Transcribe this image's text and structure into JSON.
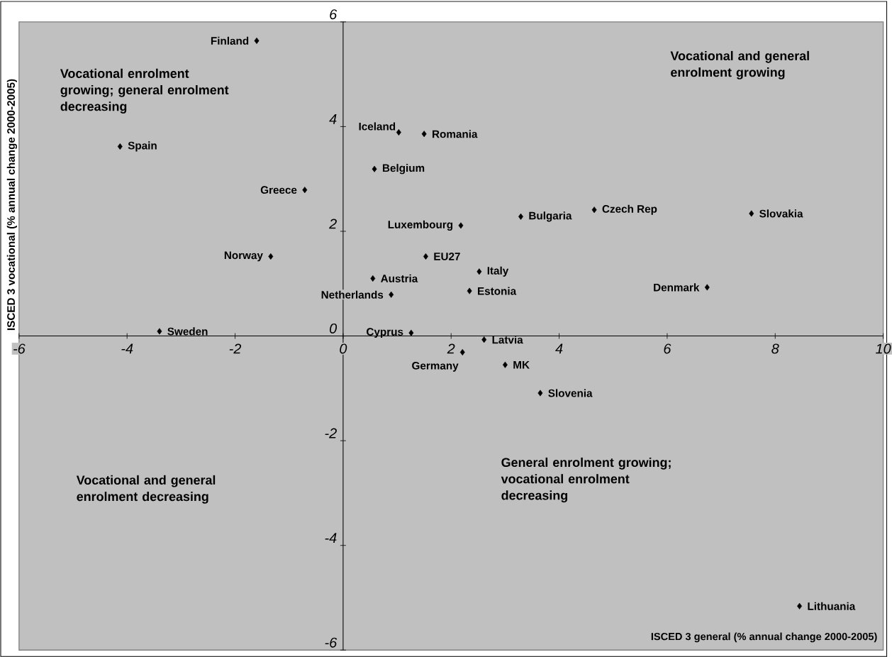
{
  "chart_data": {
    "type": "scatter",
    "xlabel": "ISCED 3 general (% annual change 2000-2005)",
    "ylabel": "ISCED 3 vocational (% annual change 2000-2005)",
    "xlim": [
      -6,
      10
    ],
    "ylim": [
      -6,
      6
    ],
    "xticks": [
      -6,
      -4,
      -2,
      0,
      2,
      4,
      6,
      8,
      10
    ],
    "yticks": [
      -6,
      -4,
      -2,
      0,
      2,
      4,
      6
    ],
    "marker": "diamond",
    "grid": false,
    "annotations": [
      "Vocational enrolment growing; general enrolment decreasing",
      "Vocational and general enrolment growing",
      "Vocational and general enrolment decreasing",
      "General enrolment growing; vocational enrolment decreasing"
    ],
    "series": [
      {
        "name": "Finland",
        "color": "#000000",
        "x": [
          -1.6
        ],
        "values": [
          5.64
        ]
      },
      {
        "name": "Spain",
        "color": "#000000",
        "x": [
          -4.13
        ],
        "values": [
          3.62
        ]
      },
      {
        "name": "Iceland",
        "color": "#000000",
        "x": [
          1.03
        ],
        "values": [
          3.89
        ]
      },
      {
        "name": "Romania",
        "color": "#000000",
        "x": [
          1.5
        ],
        "values": [
          3.86
        ]
      },
      {
        "name": "Belgium",
        "color": "#000000",
        "x": [
          0.58
        ],
        "values": [
          3.19
        ]
      },
      {
        "name": "Greece",
        "color": "#000000",
        "x": [
          -0.71
        ],
        "values": [
          2.79
        ]
      },
      {
        "name": "Czech Rep",
        "color": "#000000",
        "x": [
          4.65
        ],
        "values": [
          2.41
        ]
      },
      {
        "name": "Bulgaria",
        "color": "#000000",
        "x": [
          3.29
        ],
        "values": [
          2.28
        ]
      },
      {
        "name": "Slovakia",
        "color": "#000000",
        "x": [
          7.56
        ],
        "values": [
          2.34
        ]
      },
      {
        "name": "Luxembourg",
        "color": "#000000",
        "x": [
          2.18
        ],
        "values": [
          2.11
        ]
      },
      {
        "name": "Norway",
        "color": "#000000",
        "x": [
          -1.34
        ],
        "values": [
          1.52
        ]
      },
      {
        "name": "EU27",
        "color": "#000000",
        "x": [
          1.53
        ],
        "values": [
          1.52
        ]
      },
      {
        "name": "Italy",
        "color": "#000000",
        "x": [
          2.52
        ],
        "values": [
          1.23
        ]
      },
      {
        "name": "Austria",
        "color": "#000000",
        "x": [
          0.55
        ],
        "values": [
          1.1
        ]
      },
      {
        "name": "Denmark",
        "color": "#000000",
        "x": [
          6.74
        ],
        "values": [
          0.93
        ]
      },
      {
        "name": "Netherlands",
        "color": "#000000",
        "x": [
          0.89
        ],
        "values": [
          0.79
        ]
      },
      {
        "name": "Estonia",
        "color": "#000000",
        "x": [
          2.34
        ],
        "values": [
          0.86
        ]
      },
      {
        "name": "Sweden",
        "color": "#000000",
        "x": [
          -3.4
        ],
        "values": [
          0.09
        ]
      },
      {
        "name": "Cyprus",
        "color": "#000000",
        "x": [
          1.26
        ],
        "values": [
          0.06
        ]
      },
      {
        "name": "Latvia",
        "color": "#000000",
        "x": [
          2.61
        ],
        "values": [
          -0.07
        ]
      },
      {
        "name": "Germany",
        "color": "#000000",
        "x": [
          2.21
        ],
        "values": [
          -0.31
        ]
      },
      {
        "name": "MK",
        "color": "#000000",
        "x": [
          3.0
        ],
        "values": [
          -0.55
        ]
      },
      {
        "name": "Slovenia",
        "color": "#000000",
        "x": [
          3.65
        ],
        "values": [
          -1.09
        ]
      },
      {
        "name": "Lithuania",
        "color": "#000000",
        "x": [
          8.45
        ],
        "values": [
          -5.16
        ]
      }
    ]
  }
}
